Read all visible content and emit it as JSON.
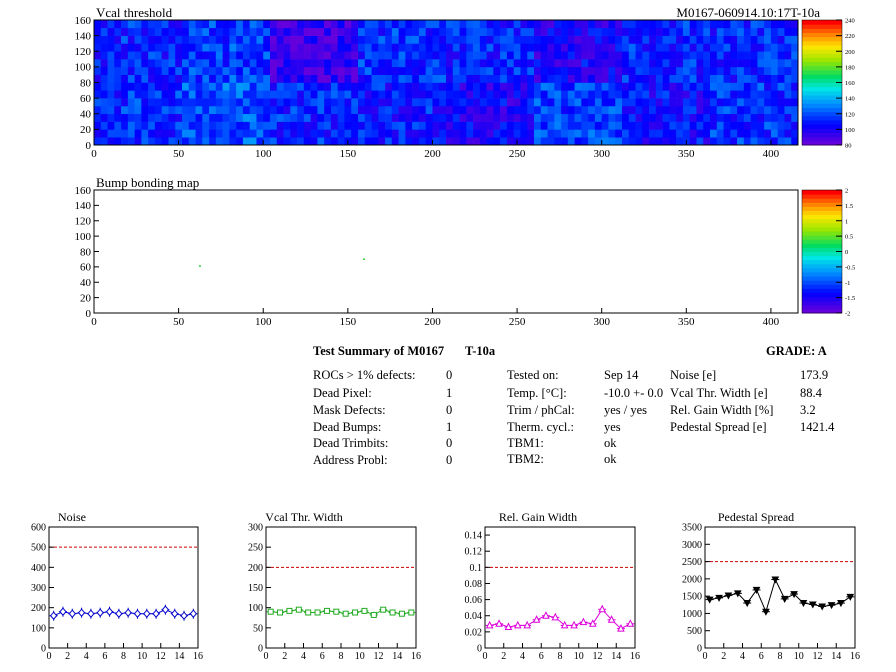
{
  "chart_data": [
    {
      "type": "heatmap",
      "title": "Vcal threshold",
      "label_right": "M0167-060914.10:17T-10a",
      "xlim": [
        0,
        416
      ],
      "ylim": [
        0,
        160
      ],
      "x_ticks": [
        "0",
        "50",
        "100",
        "150",
        "200",
        "250",
        "300",
        "350",
        "400"
      ],
      "y_ticks": [
        "0",
        "20",
        "40",
        "60",
        "80",
        "100",
        "120",
        "140",
        "160"
      ],
      "palette_ticks": [
        "80",
        "100",
        "120",
        "140",
        "160",
        "180",
        "200",
        "220",
        "240"
      ],
      "cell_means": [
        [
          110,
          115,
          90,
          112,
          109,
          100,
          110,
          110
        ],
        [
          112,
          120,
          110,
          108,
          100,
          115,
          105,
          112
        ]
      ]
    },
    {
      "type": "heatmap",
      "title": "Bump bonding map",
      "xlim": [
        0,
        416
      ],
      "ylim": [
        0,
        160
      ],
      "x_ticks": [
        "0",
        "50",
        "100",
        "150",
        "200",
        "250",
        "300",
        "350",
        "400"
      ],
      "y_ticks": [
        "0",
        "20",
        "40",
        "60",
        "80",
        "100",
        "120",
        "140",
        "160"
      ],
      "palette_ticks": [
        "-2",
        "-1.5",
        "-1",
        "-0.5",
        "0",
        "0.5",
        "1",
        "1.5",
        "2"
      ],
      "points": [
        {
          "x": 62,
          "y": 62
        },
        {
          "x": 159,
          "y": 71
        }
      ]
    },
    {
      "type": "line",
      "title": "Noise",
      "xlim": [
        0,
        16
      ],
      "ylim": [
        0,
        600
      ],
      "x_ticks": [
        "0",
        "2",
        "4",
        "6",
        "8",
        "10",
        "12",
        "14",
        "16"
      ],
      "y_ticks": [
        "0",
        "100",
        "200",
        "300",
        "400",
        "500",
        "600"
      ],
      "limit": 500,
      "color": "#0000cc",
      "marker": "diamond",
      "x": [
        0.5,
        1.5,
        2.5,
        3.5,
        4.5,
        5.5,
        6.5,
        7.5,
        8.5,
        9.5,
        10.5,
        11.5,
        12.5,
        13.5,
        14.5,
        15.5
      ],
      "values": [
        160,
        180,
        170,
        175,
        170,
        175,
        180,
        170,
        175,
        170,
        170,
        170,
        190,
        170,
        160,
        170
      ]
    },
    {
      "type": "line",
      "title": "Vcal Thr. Width",
      "xlim": [
        0,
        16
      ],
      "ylim": [
        0,
        300
      ],
      "x_ticks": [
        "0",
        "2",
        "4",
        "6",
        "8",
        "10",
        "12",
        "14",
        "16"
      ],
      "y_ticks": [
        "0",
        "50",
        "100",
        "150",
        "200",
        "250",
        "300"
      ],
      "limit": 200,
      "color": "#22aa22",
      "marker": "square",
      "x": [
        0.5,
        1.5,
        2.5,
        3.5,
        4.5,
        5.5,
        6.5,
        7.5,
        8.5,
        9.5,
        10.5,
        11.5,
        12.5,
        13.5,
        14.5,
        15.5
      ],
      "values": [
        90,
        88,
        92,
        95,
        88,
        88,
        92,
        90,
        85,
        88,
        92,
        82,
        95,
        88,
        85,
        88
      ]
    },
    {
      "type": "line",
      "title": "Rel. Gain Width",
      "xlim": [
        0,
        16
      ],
      "ylim": [
        0,
        0.15
      ],
      "x_ticks": [
        "0",
        "2",
        "4",
        "6",
        "8",
        "10",
        "12",
        "14",
        "16"
      ],
      "y_ticks": [
        "0",
        "0.02",
        "0.04",
        "0.06",
        "0.08",
        "0.1",
        "0.12",
        "0.14"
      ],
      "limit": 0.1,
      "color": "#dd00dd",
      "marker": "triangle",
      "x": [
        0.5,
        1.5,
        2.5,
        3.5,
        4.5,
        5.5,
        6.5,
        7.5,
        8.5,
        9.5,
        10.5,
        11.5,
        12.5,
        13.5,
        14.5,
        15.5
      ],
      "values": [
        0.028,
        0.03,
        0.026,
        0.028,
        0.028,
        0.035,
        0.04,
        0.038,
        0.028,
        0.028,
        0.032,
        0.03,
        0.048,
        0.035,
        0.024,
        0.03
      ]
    },
    {
      "type": "line",
      "title": "Pedestal Spread",
      "xlim": [
        0,
        16
      ],
      "ylim": [
        0,
        3500
      ],
      "x_ticks": [
        "0",
        "2",
        "4",
        "6",
        "8",
        "10",
        "12",
        "14",
        "16"
      ],
      "y_ticks": [
        "0",
        "500",
        "1000",
        "1500",
        "2000",
        "2500",
        "3000",
        "3500"
      ],
      "limit": 2500,
      "color": "#000000",
      "marker": "triangle-down",
      "x": [
        0.5,
        1.5,
        2.5,
        3.5,
        4.5,
        5.5,
        6.5,
        7.5,
        8.5,
        9.5,
        10.5,
        11.5,
        12.5,
        13.5,
        14.5,
        15.5
      ],
      "values": [
        1400,
        1450,
        1520,
        1580,
        1300,
        1680,
        1050,
        1980,
        1420,
        1560,
        1300,
        1260,
        1200,
        1240,
        1300,
        1480
      ]
    }
  ],
  "summary": {
    "title": "Test Summary of M0167",
    "test_id": "T-10a",
    "grade": "GRADE:  A",
    "defects": [
      {
        "label": "ROCs > 1% defects:",
        "value": "0"
      },
      {
        "label": "Dead Pixel:",
        "value": "1"
      },
      {
        "label": "Mask Defects:",
        "value": "0"
      },
      {
        "label": "Dead Bumps:",
        "value": "1"
      },
      {
        "label": "Dead Trimbits:",
        "value": "0"
      },
      {
        "label": "Address Probl:",
        "value": "0"
      }
    ],
    "conditions": [
      {
        "label": "Tested on:",
        "value": "Sep 14"
      },
      {
        "label": "Temp. [°C]:",
        "value": "-10.0 +- 0.0"
      },
      {
        "label": "Trim / phCal:",
        "value": "yes / yes"
      },
      {
        "label": "Therm. cycl.:",
        "value": "yes"
      },
      {
        "label": "TBM1:",
        "value": "ok"
      },
      {
        "label": "TBM2:",
        "value": "ok"
      }
    ],
    "metrics": [
      {
        "label": "Noise [e]",
        "value": "173.9"
      },
      {
        "label": "Vcal Thr. Width [e]",
        "value": "88.4"
      },
      {
        "label": "Rel. Gain Width [%]",
        "value": "3.2"
      },
      {
        "label": "Pedestal Spread [e]",
        "value": "1421.4"
      }
    ]
  }
}
